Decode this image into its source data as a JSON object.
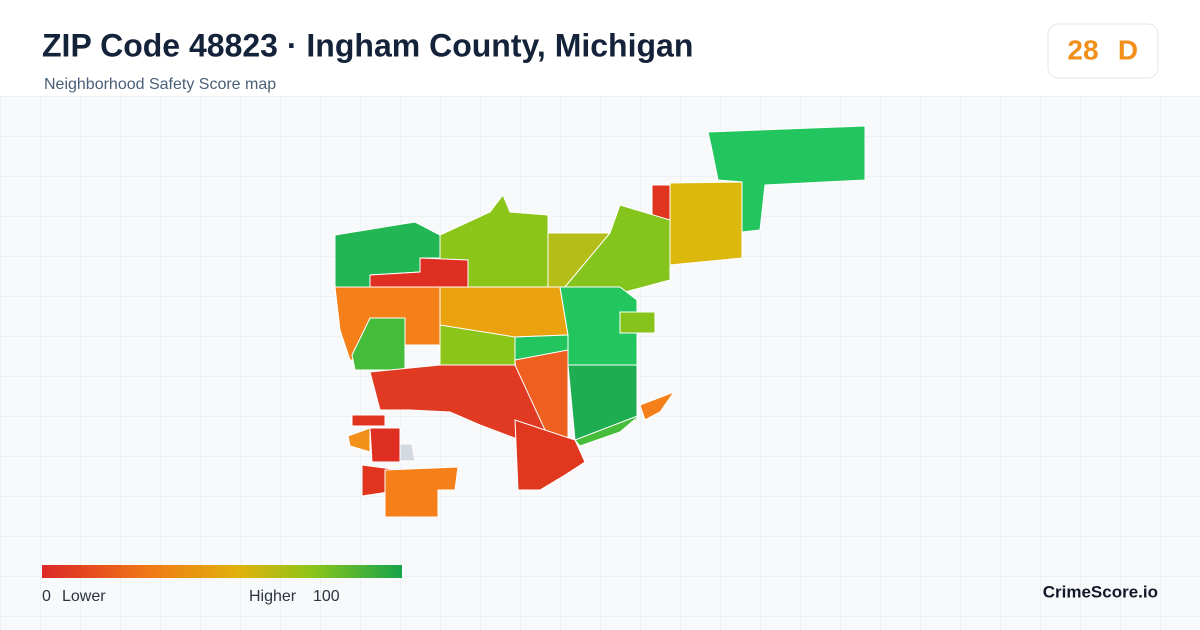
{
  "header": {
    "title": "ZIP Code 48823 · Ingham County, Michigan",
    "subtitle": "Neighborhood Safety Score map"
  },
  "score": {
    "value": 28,
    "grade": "D"
  },
  "legend": {
    "min": 0,
    "min_label": "Lower",
    "max_label": "Higher",
    "max": 100
  },
  "brand": "CrimeScore.io"
}
